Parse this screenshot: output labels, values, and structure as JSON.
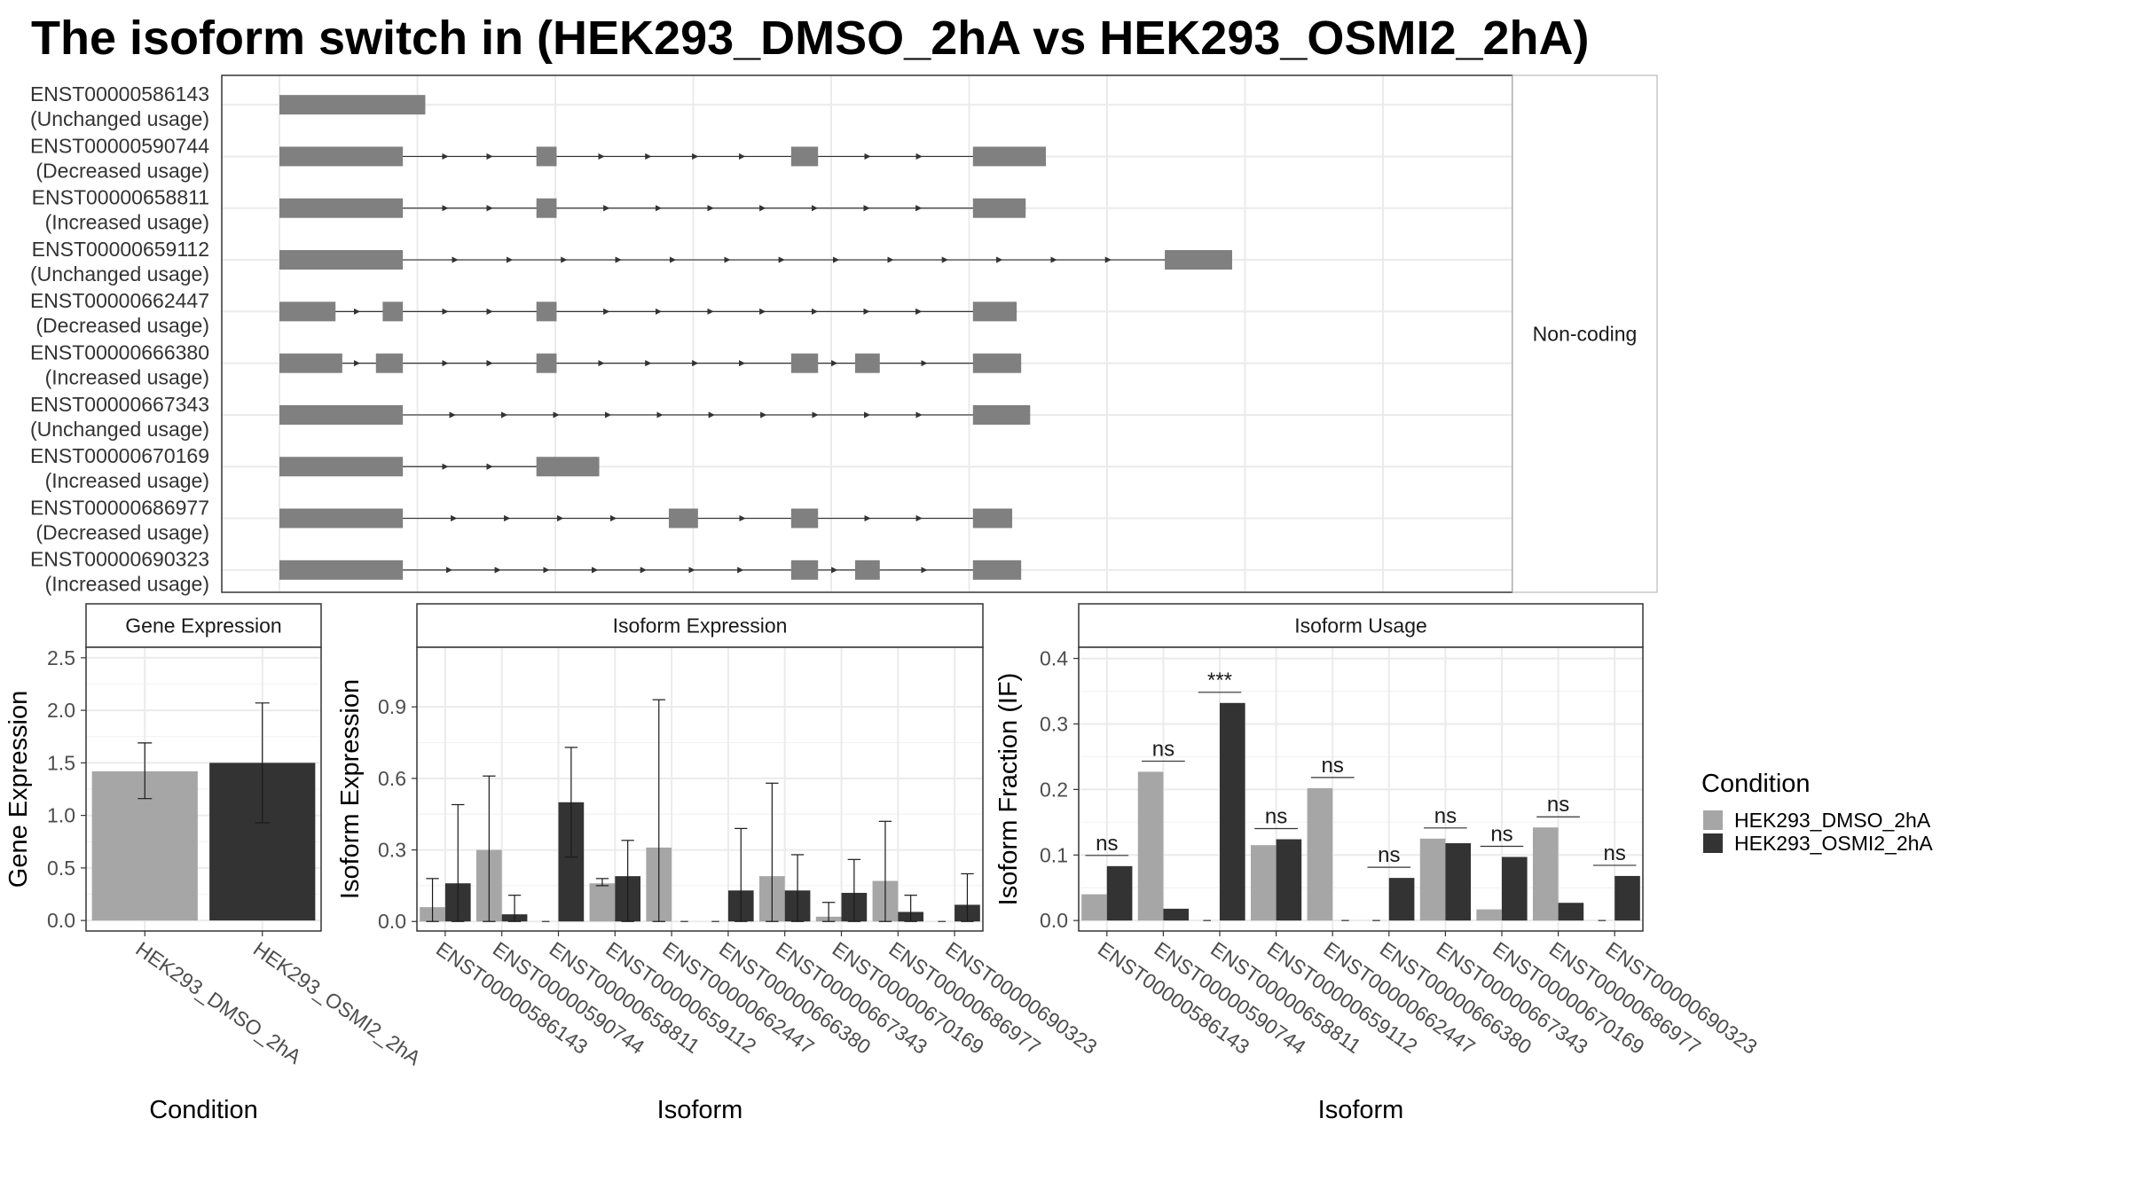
{
  "title": "The isoform switch in  (HEK293_DMSO_2hA vs HEK293_OSMI2_2hA)",
  "colors": {
    "dmso": "#a6a6a6",
    "osmi2": "#333333",
    "exon": "#808080",
    "grid": "#ebebeb",
    "strip_bg": "#ffffff"
  },
  "chart_data": [
    {
      "type": "gene-structure",
      "category_label": "Non-coding",
      "transcripts": [
        {
          "id": "ENST00000586143",
          "usage": "(Unchanged usage)",
          "exons": [
            [
              0.0,
              0.13
            ]
          ]
        },
        {
          "id": "ENST00000590744",
          "usage": "(Decreased usage)",
          "exons": [
            [
              0.0,
              0.11
            ],
            [
              0.229,
              0.247
            ],
            [
              0.456,
              0.48
            ],
            [
              0.618,
              0.683
            ]
          ]
        },
        {
          "id": "ENST00000658811",
          "usage": "(Increased usage)",
          "exons": [
            [
              0.0,
              0.11
            ],
            [
              0.229,
              0.247
            ],
            [
              0.618,
              0.665
            ]
          ]
        },
        {
          "id": "ENST00000659112",
          "usage": "(Unchanged usage)",
          "exons": [
            [
              0.0,
              0.11
            ],
            [
              0.789,
              0.849
            ]
          ]
        },
        {
          "id": "ENST00000662447",
          "usage": "(Decreased usage)",
          "exons": [
            [
              0.0,
              0.05
            ],
            [
              0.092,
              0.11
            ],
            [
              0.229,
              0.247
            ],
            [
              0.618,
              0.657
            ]
          ]
        },
        {
          "id": "ENST00000666380",
          "usage": "(Increased usage)",
          "exons": [
            [
              0.0,
              0.056
            ],
            [
              0.086,
              0.11
            ],
            [
              0.229,
              0.247
            ],
            [
              0.456,
              0.48
            ],
            [
              0.513,
              0.535
            ],
            [
              0.618,
              0.661
            ]
          ]
        },
        {
          "id": "ENST00000667343",
          "usage": "(Unchanged usage)",
          "exons": [
            [
              0.0,
              0.11
            ],
            [
              0.618,
              0.669
            ]
          ]
        },
        {
          "id": "ENST00000670169",
          "usage": "(Increased usage)",
          "exons": [
            [
              0.0,
              0.11
            ],
            [
              0.229,
              0.285
            ]
          ]
        },
        {
          "id": "ENST00000686977",
          "usage": "(Decreased usage)",
          "exons": [
            [
              0.0,
              0.11
            ],
            [
              0.347,
              0.373
            ],
            [
              0.456,
              0.48
            ],
            [
              0.618,
              0.653
            ]
          ]
        },
        {
          "id": "ENST00000690323",
          "usage": "(Increased usage)",
          "exons": [
            [
              0.0,
              0.11
            ],
            [
              0.456,
              0.48
            ],
            [
              0.513,
              0.535
            ],
            [
              0.618,
              0.661
            ]
          ]
        }
      ]
    },
    {
      "type": "bar",
      "strip_title": "Gene Expression",
      "ylabel": "Gene Expression",
      "xlabel": "Condition",
      "ylim": [
        -0.1,
        2.6
      ],
      "yticks": [
        0.0,
        0.5,
        1.0,
        1.5,
        2.0,
        2.5
      ],
      "ytick_labels": [
        "0.0",
        "0.5",
        "1.0",
        "1.5",
        "2.0",
        "2.5"
      ],
      "categories": [
        "HEK293_DMSO_2hA",
        "HEK293_OSMI2_2hA"
      ],
      "values": [
        1.42,
        1.5
      ],
      "errors": [
        [
          1.16,
          1.69
        ],
        [
          0.93,
          2.07
        ]
      ]
    },
    {
      "type": "bar",
      "strip_title": "Isoform Expression",
      "ylabel": "Isoform Expression",
      "xlabel": "Isoform",
      "ylim": [
        -0.04,
        1.15
      ],
      "yticks": [
        0.0,
        0.3,
        0.6,
        0.9
      ],
      "ytick_labels": [
        "0.0",
        "0.3",
        "0.6",
        "0.9"
      ],
      "categories": [
        "ENST00000586143",
        "ENST00000590744",
        "ENST00000658811",
        "ENST00000659112",
        "ENST00000662447",
        "ENST00000666380",
        "ENST00000667343",
        "ENST00000670169",
        "ENST00000686977",
        "ENST00000690323"
      ],
      "series": [
        {
          "name": "HEK293_DMSO_2hA",
          "values": [
            0.06,
            0.3,
            0.0,
            0.16,
            0.31,
            0.0,
            0.19,
            0.02,
            0.17,
            0.0
          ],
          "errors": [
            [
              0.0,
              0.18
            ],
            [
              0.0,
              0.61
            ],
            [
              0.0,
              0.0
            ],
            [
              0.15,
              0.18
            ],
            [
              0.0,
              0.93
            ],
            [
              0.0,
              0.0
            ],
            [
              0.0,
              0.58
            ],
            [
              0.0,
              0.08
            ],
            [
              0.0,
              0.42
            ],
            [
              0.0,
              0.0
            ]
          ]
        },
        {
          "name": "HEK293_OSMI2_2hA",
          "values": [
            0.16,
            0.03,
            0.5,
            0.19,
            0.0,
            0.13,
            0.13,
            0.12,
            0.04,
            0.07
          ],
          "errors": [
            [
              0.0,
              0.49
            ],
            [
              0.0,
              0.11
            ],
            [
              0.27,
              0.73
            ],
            [
              0.0,
              0.34
            ],
            [
              0.0,
              0.0
            ],
            [
              0.0,
              0.39
            ],
            [
              0.0,
              0.28
            ],
            [
              0.0,
              0.26
            ],
            [
              0.0,
              0.11
            ],
            [
              0.0,
              0.2
            ]
          ]
        }
      ]
    },
    {
      "type": "bar",
      "strip_title": "Isoform Usage",
      "ylabel": "Isoform Fraction (IF)",
      "xlabel": "Isoform",
      "ylim": [
        -0.016,
        0.417
      ],
      "yticks": [
        0.0,
        0.1,
        0.2,
        0.3,
        0.4
      ],
      "ytick_labels": [
        "0.0",
        "0.1",
        "0.2",
        "0.3",
        "0.4"
      ],
      "categories": [
        "ENST00000586143",
        "ENST00000590744",
        "ENST00000658811",
        "ENST00000659112",
        "ENST00000662447",
        "ENST00000666380",
        "ENST00000667343",
        "ENST00000670169",
        "ENST00000686977",
        "ENST00000690323"
      ],
      "series": [
        {
          "name": "HEK293_DMSO_2hA",
          "values": [
            0.04,
            0.227,
            0.0,
            0.115,
            0.202,
            0.0,
            0.125,
            0.017,
            0.142,
            0.0
          ]
        },
        {
          "name": "HEK293_OSMI2_2hA",
          "values": [
            0.083,
            0.018,
            0.332,
            0.124,
            0.0,
            0.065,
            0.118,
            0.097,
            0.027,
            0.068
          ]
        }
      ],
      "significance": [
        "ns",
        "ns",
        "***",
        "ns",
        "ns",
        "ns",
        "ns",
        "ns",
        "ns",
        "ns"
      ]
    }
  ],
  "legend": {
    "title": "Condition",
    "entries": [
      "HEK293_DMSO_2hA",
      "HEK293_OSMI2_2hA"
    ]
  }
}
